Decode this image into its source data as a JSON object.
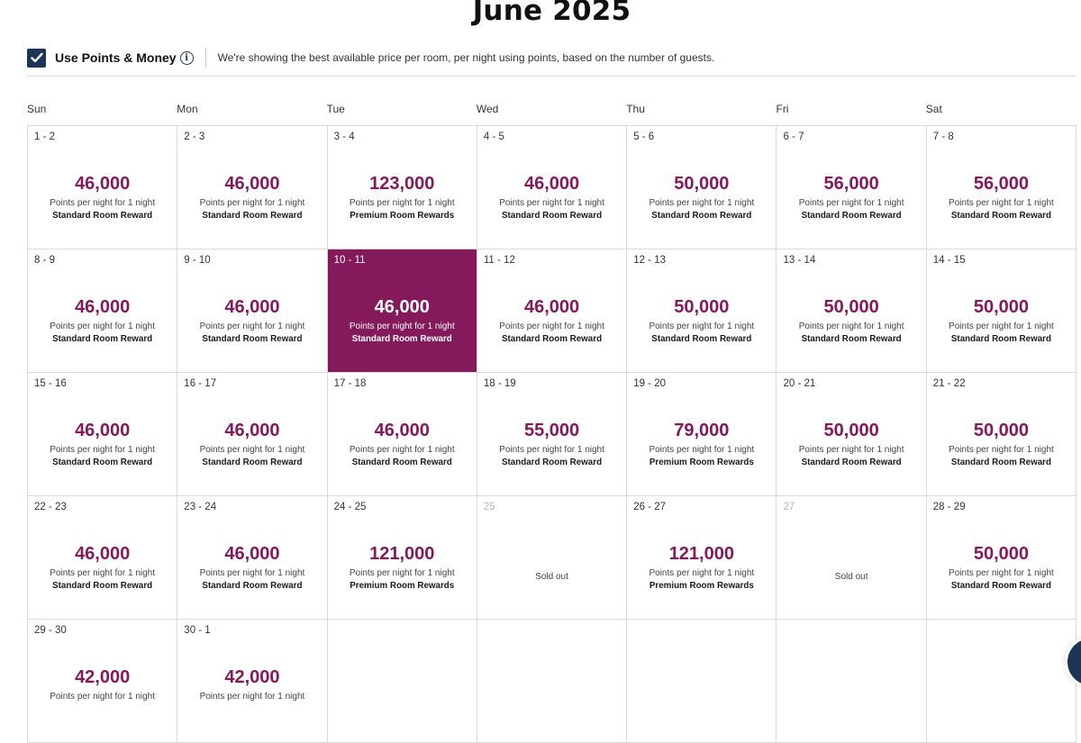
{
  "header": {
    "month_title": "June 2025"
  },
  "points_money": {
    "checked": true,
    "label": "Use Points & Money",
    "note": "We're showing the best available price per room, per night using points, based on the number of guests."
  },
  "weekdays": [
    "Sun",
    "Mon",
    "Tue",
    "Wed",
    "Thu",
    "Fri",
    "Sat"
  ],
  "colors": {
    "accent": "#84195b",
    "navy": "#1c3455",
    "grid_line": "#d9d9d9"
  },
  "calendar": {
    "days": [
      {
        "date": "1 - 2",
        "points": "46,000",
        "sub": "Points per night for 1 night",
        "room": "Standard Room Reward"
      },
      {
        "date": "2 - 3",
        "points": "46,000",
        "sub": "Points per night for 1 night",
        "room": "Standard Room Reward"
      },
      {
        "date": "3 - 4",
        "points": "123,000",
        "sub": "Points per night for 1 night",
        "room": "Premium Room Rewards"
      },
      {
        "date": "4 - 5",
        "points": "46,000",
        "sub": "Points per night for 1 night",
        "room": "Standard Room Reward"
      },
      {
        "date": "5 - 6",
        "points": "50,000",
        "sub": "Points per night for 1 night",
        "room": "Standard Room Reward"
      },
      {
        "date": "6 - 7",
        "points": "56,000",
        "sub": "Points per night for 1 night",
        "room": "Standard Room Reward"
      },
      {
        "date": "7 - 8",
        "points": "56,000",
        "sub": "Points per night for 1 night",
        "room": "Standard Room Reward"
      },
      {
        "date": "8 - 9",
        "points": "46,000",
        "sub": "Points per night for 1 night",
        "room": "Standard Room Reward"
      },
      {
        "date": "9 - 10",
        "points": "46,000",
        "sub": "Points per night for 1 night",
        "room": "Standard Room Reward"
      },
      {
        "date": "10 - 11",
        "points": "46,000",
        "sub": "Points per night for 1 night",
        "room": "Standard Room Reward",
        "selected": true
      },
      {
        "date": "11 - 12",
        "points": "46,000",
        "sub": "Points per night for 1 night",
        "room": "Standard Room Reward"
      },
      {
        "date": "12 - 13",
        "points": "50,000",
        "sub": "Points per night for 1 night",
        "room": "Standard Room Reward"
      },
      {
        "date": "13 - 14",
        "points": "50,000",
        "sub": "Points per night for 1 night",
        "room": "Standard Room Reward"
      },
      {
        "date": "14 - 15",
        "points": "50,000",
        "sub": "Points per night for 1 night",
        "room": "Standard Room Reward"
      },
      {
        "date": "15 - 16",
        "points": "46,000",
        "sub": "Points per night for 1 night",
        "room": "Standard Room Reward"
      },
      {
        "date": "16 - 17",
        "points": "46,000",
        "sub": "Points per night for 1 night",
        "room": "Standard Room Reward"
      },
      {
        "date": "17 - 18",
        "points": "46,000",
        "sub": "Points per night for 1 night",
        "room": "Standard Room Reward"
      },
      {
        "date": "18 - 19",
        "points": "55,000",
        "sub": "Points per night for 1 night",
        "room": "Standard Room Reward"
      },
      {
        "date": "19 - 20",
        "points": "79,000",
        "sub": "Points per night for 1 night",
        "room": "Premium Room Rewards"
      },
      {
        "date": "20 - 21",
        "points": "50,000",
        "sub": "Points per night for 1 night",
        "room": "Standard Room Reward"
      },
      {
        "date": "21 - 22",
        "points": "50,000",
        "sub": "Points per night for 1 night",
        "room": "Standard Room Reward"
      },
      {
        "date": "22 - 23",
        "points": "46,000",
        "sub": "Points per night for 1 night",
        "room": "Standard Room Reward"
      },
      {
        "date": "23 - 24",
        "points": "46,000",
        "sub": "Points per night for 1 night",
        "room": "Standard Room Reward"
      },
      {
        "date": "24 - 25",
        "points": "121,000",
        "sub": "Points per night for 1 night",
        "room": "Premium Room Rewards"
      },
      {
        "date": "25",
        "sold_out": "Sold out"
      },
      {
        "date": "26 - 27",
        "points": "121,000",
        "sub": "Points per night for 1 night",
        "room": "Premium Room Rewards"
      },
      {
        "date": "27",
        "sold_out": "Sold out"
      },
      {
        "date": "28 - 29",
        "points": "50,000",
        "sub": "Points per night for 1 night",
        "room": "Standard Room Reward"
      },
      {
        "date": "29 - 30",
        "points": "42,000",
        "sub": "Points per night for 1 night",
        "room": ""
      },
      {
        "date": "30 - 1",
        "points": "42,000",
        "sub": "Points per night for 1 night",
        "room": ""
      }
    ],
    "trailing_empty": 5
  }
}
